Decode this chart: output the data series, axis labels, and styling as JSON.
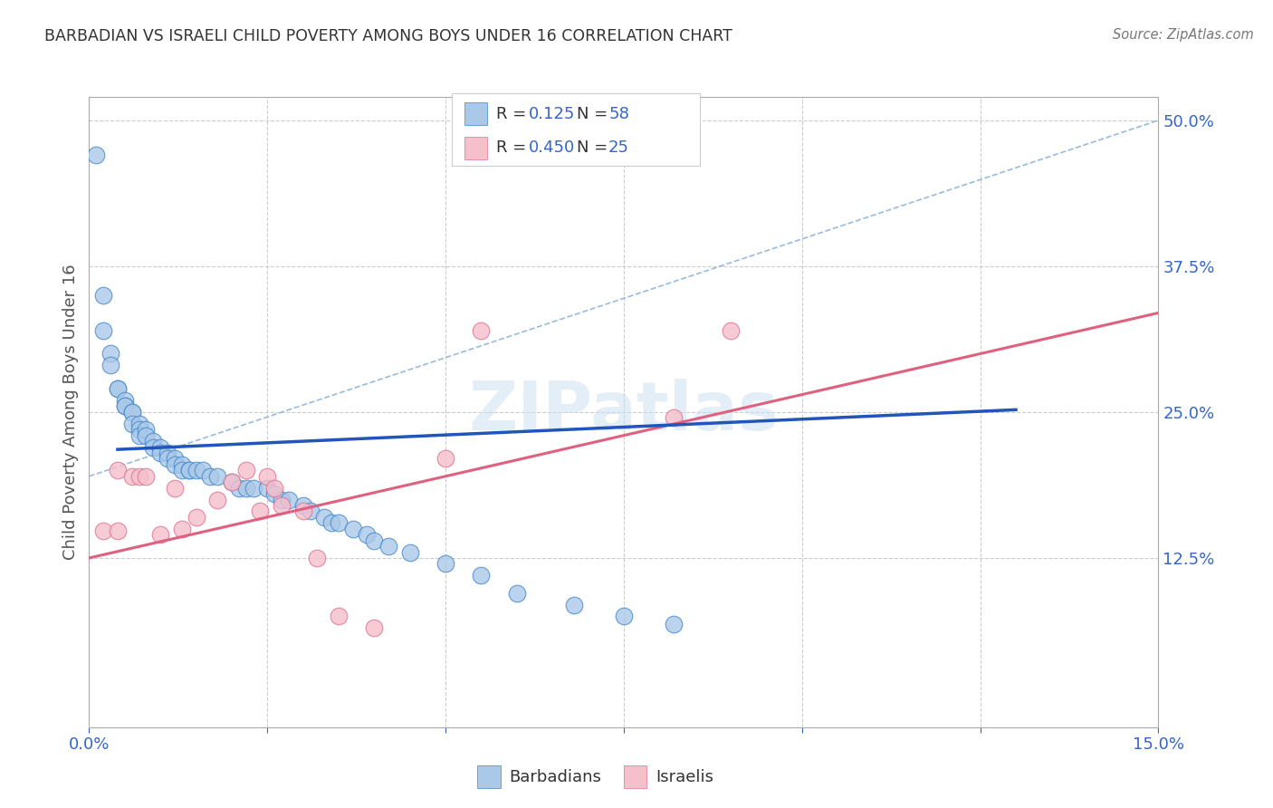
{
  "title": "BARBADIAN VS ISRAELI CHILD POVERTY AMONG BOYS UNDER 16 CORRELATION CHART",
  "source": "Source: ZipAtlas.com",
  "ylabel": "Child Poverty Among Boys Under 16",
  "xlim": [
    0.0,
    0.15
  ],
  "ylim": [
    -0.02,
    0.52
  ],
  "blue_color": "#aac8e8",
  "pink_color": "#f5bfcc",
  "blue_edge_color": "#4488cc",
  "pink_edge_color": "#e07090",
  "blue_line_color": "#2255bb",
  "pink_line_color": "#e06080",
  "dashed_line_color": "#99bbdd",
  "watermark": "ZIPatlas",
  "barbadians_x": [
    0.001,
    0.002,
    0.002,
    0.003,
    0.003,
    0.004,
    0.004,
    0.005,
    0.005,
    0.005,
    0.006,
    0.006,
    0.006,
    0.007,
    0.007,
    0.007,
    0.008,
    0.008,
    0.009,
    0.009,
    0.01,
    0.01,
    0.011,
    0.011,
    0.012,
    0.012,
    0.013,
    0.013,
    0.014,
    0.014,
    0.015,
    0.016,
    0.017,
    0.018,
    0.02,
    0.021,
    0.022,
    0.023,
    0.025,
    0.026,
    0.027,
    0.028,
    0.03,
    0.031,
    0.033,
    0.034,
    0.035,
    0.037,
    0.039,
    0.04,
    0.042,
    0.045,
    0.05,
    0.055,
    0.06,
    0.068,
    0.075,
    0.082
  ],
  "barbadians_y": [
    0.47,
    0.35,
    0.32,
    0.3,
    0.29,
    0.27,
    0.27,
    0.26,
    0.255,
    0.255,
    0.25,
    0.25,
    0.24,
    0.24,
    0.235,
    0.23,
    0.235,
    0.23,
    0.225,
    0.22,
    0.22,
    0.215,
    0.215,
    0.21,
    0.21,
    0.205,
    0.205,
    0.2,
    0.2,
    0.2,
    0.2,
    0.2,
    0.195,
    0.195,
    0.19,
    0.185,
    0.185,
    0.185,
    0.185,
    0.18,
    0.175,
    0.175,
    0.17,
    0.165,
    0.16,
    0.155,
    0.155,
    0.15,
    0.145,
    0.14,
    0.135,
    0.13,
    0.12,
    0.11,
    0.095,
    0.085,
    0.075,
    0.068
  ],
  "israelis_x": [
    0.002,
    0.004,
    0.004,
    0.006,
    0.007,
    0.008,
    0.01,
    0.012,
    0.013,
    0.015,
    0.018,
    0.02,
    0.022,
    0.024,
    0.025,
    0.026,
    0.027,
    0.03,
    0.032,
    0.035,
    0.04,
    0.05,
    0.055,
    0.082,
    0.09
  ],
  "israelis_y": [
    0.148,
    0.148,
    0.2,
    0.195,
    0.195,
    0.195,
    0.145,
    0.185,
    0.15,
    0.16,
    0.175,
    0.19,
    0.2,
    0.165,
    0.195,
    0.185,
    0.17,
    0.165,
    0.125,
    0.075,
    0.065,
    0.21,
    0.32,
    0.245,
    0.32
  ],
  "blue_line_x": [
    0.004,
    0.13
  ],
  "blue_line_y": [
    0.218,
    0.252
  ],
  "pink_line_x": [
    0.0,
    0.15
  ],
  "pink_line_y": [
    0.125,
    0.335
  ],
  "dashed_line_x": [
    0.0,
    0.15
  ],
  "dashed_line_y": [
    0.195,
    0.5
  ]
}
